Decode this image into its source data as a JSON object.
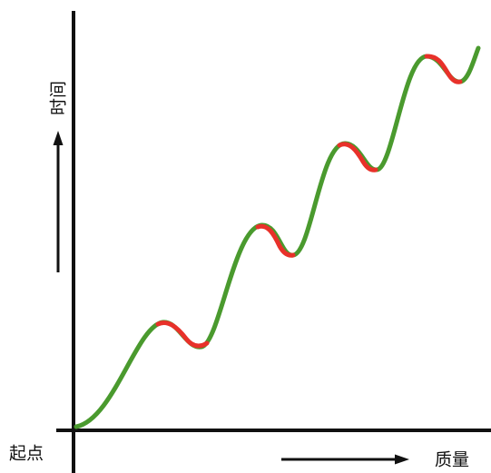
{
  "labels": {
    "y_axis": "时间",
    "origin": "起点",
    "x_axis": "质量"
  },
  "colors": {
    "background": "#ffffff",
    "axis": "#111111",
    "rising": "#4a9a2e",
    "dip": "#e8312a"
  }
}
